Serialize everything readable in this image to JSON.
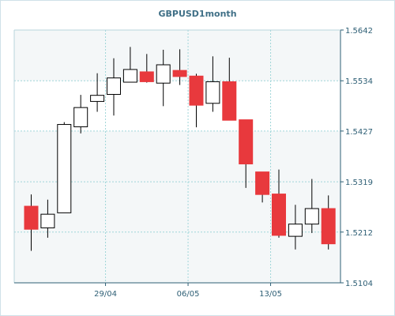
{
  "chart_data": {
    "type": "candlestick",
    "title": "GBPUSD1month",
    "xlabel": "",
    "ylabel": "",
    "ylim": [
      1.5104,
      1.5642
    ],
    "y_ticks": [
      "1.5642",
      "1.5534",
      "1.5427",
      "1.5319",
      "1.5212",
      "1.5104"
    ],
    "x_ticks": [
      {
        "label": "29/04",
        "index": 4.5
      },
      {
        "label": "06/05",
        "index": 9.5
      },
      {
        "label": "13/05",
        "index": 14.5
      }
    ],
    "grid": true,
    "up_color": "#ffffff",
    "down_color": "#e8393d",
    "candles": [
      {
        "open": 1.5267,
        "high": 1.5292,
        "low": 1.5172,
        "close": 1.5218
      },
      {
        "open": 1.5221,
        "high": 1.5281,
        "low": 1.52,
        "close": 1.525
      },
      {
        "open": 1.5253,
        "high": 1.5446,
        "low": 1.5253,
        "close": 1.5441
      },
      {
        "open": 1.5436,
        "high": 1.5504,
        "low": 1.5422,
        "close": 1.5477
      },
      {
        "open": 1.549,
        "high": 1.555,
        "low": 1.5468,
        "close": 1.5503
      },
      {
        "open": 1.5505,
        "high": 1.5582,
        "low": 1.546,
        "close": 1.554
      },
      {
        "open": 1.5531,
        "high": 1.5606,
        "low": 1.5531,
        "close": 1.5558
      },
      {
        "open": 1.5553,
        "high": 1.5591,
        "low": 1.553,
        "close": 1.5532
      },
      {
        "open": 1.5529,
        "high": 1.56,
        "low": 1.548,
        "close": 1.5568
      },
      {
        "open": 1.5556,
        "high": 1.5601,
        "low": 1.5525,
        "close": 1.5543
      },
      {
        "open": 1.5544,
        "high": 1.5549,
        "low": 1.5435,
        "close": 1.5482
      },
      {
        "open": 1.5486,
        "high": 1.5586,
        "low": 1.5468,
        "close": 1.5532
      },
      {
        "open": 1.5532,
        "high": 1.5583,
        "low": 1.545,
        "close": 1.545
      },
      {
        "open": 1.5451,
        "high": 1.5451,
        "low": 1.5306,
        "close": 1.5357
      },
      {
        "open": 1.534,
        "high": 1.534,
        "low": 1.5275,
        "close": 1.5292
      },
      {
        "open": 1.5293,
        "high": 1.5345,
        "low": 1.52,
        "close": 1.5205
      },
      {
        "open": 1.5203,
        "high": 1.527,
        "low": 1.5175,
        "close": 1.5229
      },
      {
        "open": 1.5229,
        "high": 1.5325,
        "low": 1.521,
        "close": 1.5262
      },
      {
        "open": 1.5262,
        "high": 1.529,
        "low": 1.5175,
        "close": 1.5187
      }
    ]
  }
}
